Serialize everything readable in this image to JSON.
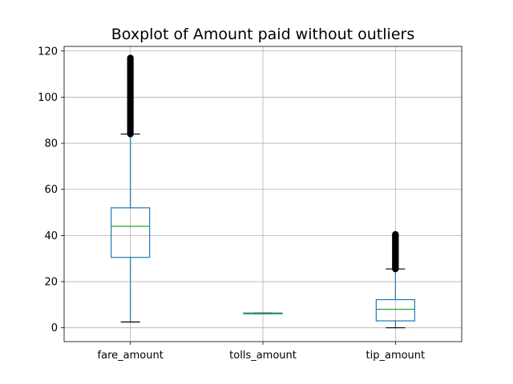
{
  "chart_data": {
    "type": "boxplot",
    "title": "Boxplot of Amount paid without outliers",
    "xlabel": "",
    "ylabel": "",
    "ylim": [
      -6,
      122
    ],
    "yticks": [
      0,
      20,
      40,
      60,
      80,
      100,
      120
    ],
    "grid": true,
    "categories": [
      "fare_amount",
      "tolls_amount",
      "tip_amount"
    ],
    "series": [
      {
        "category": "fare_amount",
        "whisker_low": 2.5,
        "q1": 30.5,
        "median": 44,
        "q3": 52,
        "whisker_high": 84,
        "outliers_range": [
          84,
          117
        ]
      },
      {
        "category": "tolls_amount",
        "whisker_low": 6.1,
        "q1": 6.1,
        "median": 6.2,
        "q3": 6.4,
        "whisker_high": 6.4,
        "outliers_range": null
      },
      {
        "category": "tip_amount",
        "whisker_low": 0,
        "q1": 3,
        "median": 8,
        "q3": 12.2,
        "whisker_high": 25.5,
        "outliers_range": [
          25.5,
          40.5
        ]
      }
    ],
    "colors": {
      "box": "#1f77b4",
      "median": "#2ca02c",
      "outlier": "#000000",
      "grid": "#b0b0b0"
    }
  }
}
